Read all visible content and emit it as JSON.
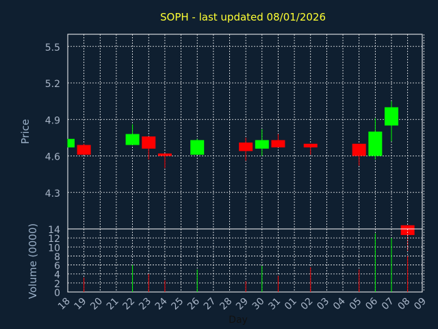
{
  "chart_data": {
    "type": "candlestick",
    "title": "SOPH - last updated 08/01/2026",
    "xlabel": "Day",
    "price_ylabel": "Price",
    "volume_ylabel": "Volume (0000)",
    "x_ticks": [
      "18",
      "19",
      "20",
      "21",
      "22",
      "23",
      "24",
      "25",
      "26",
      "27",
      "28",
      "29",
      "30",
      "31",
      "01",
      "02",
      "03",
      "04",
      "05",
      "06",
      "07",
      "08",
      "09"
    ],
    "price_ticks": [
      "4.3",
      "4.6",
      "4.9",
      "5.2",
      "5.5"
    ],
    "price_tick_values": [
      4.3,
      4.6,
      4.9,
      5.2,
      5.5
    ],
    "price_ylim": [
      4.0,
      5.6
    ],
    "volume_ticks": [
      "0",
      "2",
      "4",
      "6",
      "8",
      "10",
      "12",
      "14"
    ],
    "volume_tick_values": [
      0,
      2,
      4,
      6,
      8,
      10,
      12,
      14
    ],
    "volume_ylim": [
      0,
      14
    ],
    "grid": true,
    "colors": {
      "up": "#00ff00",
      "down": "#ff0000",
      "background": "#0f1f30",
      "grid": "#ffffff",
      "title": "#ffff33",
      "tick": "#a9b6c8"
    },
    "candles": [
      {
        "x": 0,
        "open": 4.67,
        "high": 4.74,
        "low": 4.67,
        "close": 4.74,
        "volume": 0
      },
      {
        "x": 1,
        "open": 4.69,
        "high": 4.7,
        "low": 4.61,
        "close": 4.61,
        "volume": 3.2
      },
      {
        "x": 4,
        "open": 4.69,
        "high": 4.86,
        "low": 4.69,
        "close": 4.78,
        "volume": 6.0
      },
      {
        "x": 5,
        "open": 4.76,
        "high": 4.76,
        "low": 4.57,
        "close": 4.66,
        "volume": 4.0
      },
      {
        "x": 6,
        "open": 4.62,
        "high": 4.62,
        "low": 4.5,
        "close": 4.6,
        "volume": 2.6
      },
      {
        "x": 8,
        "open": 4.61,
        "high": 4.74,
        "low": 4.61,
        "close": 4.73,
        "volume": 5.0
      },
      {
        "x": 11,
        "open": 4.71,
        "high": 4.75,
        "low": 4.56,
        "close": 4.64,
        "volume": 2.4
      },
      {
        "x": 12,
        "open": 4.66,
        "high": 4.82,
        "low": 4.6,
        "close": 4.73,
        "volume": 5.8
      },
      {
        "x": 13,
        "open": 4.73,
        "high": 4.78,
        "low": 4.67,
        "close": 4.67,
        "volume": 3.6
      },
      {
        "x": 15,
        "open": 4.7,
        "high": 4.7,
        "low": 4.61,
        "close": 4.67,
        "volume": 5.5
      },
      {
        "x": 18,
        "open": 4.7,
        "high": 4.7,
        "low": 4.52,
        "close": 4.6,
        "volume": 5.0
      },
      {
        "x": 19,
        "open": 4.6,
        "high": 4.91,
        "low": 4.57,
        "close": 4.8,
        "volume": 13.0
      },
      {
        "x": 20,
        "open": 4.85,
        "high": 5.05,
        "low": 4.72,
        "close": 5.0,
        "volume": 12.0
      },
      {
        "x": 21,
        "open": 4.03,
        "high": 4.03,
        "low": 3.82,
        "close": 3.95,
        "volume": 8.0
      }
    ]
  }
}
